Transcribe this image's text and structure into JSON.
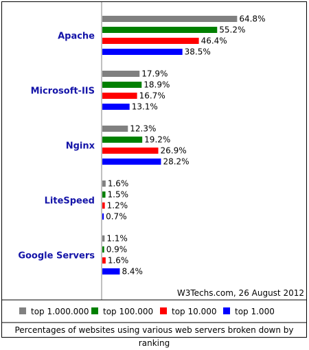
{
  "chart_data": {
    "type": "bar",
    "orientation": "horizontal",
    "categories": [
      "Apache",
      "Microsoft-IIS",
      "Nginx",
      "LiteSpeed",
      "Google Servers"
    ],
    "series": [
      {
        "name": "top 1.000.000",
        "color": "#808080",
        "values": [
          64.8,
          17.9,
          12.3,
          1.6,
          1.1
        ]
      },
      {
        "name": "top 100.000",
        "color": "#008000",
        "values": [
          55.2,
          18.9,
          19.2,
          1.5,
          0.9
        ]
      },
      {
        "name": "top 10.000",
        "color": "#ff0000",
        "values": [
          46.4,
          16.7,
          26.9,
          1.2,
          1.6
        ]
      },
      {
        "name": "top 1.000",
        "color": "#0000ff",
        "values": [
          38.5,
          13.1,
          28.2,
          0.7,
          8.4
        ]
      }
    ],
    "value_format": "percent_1dp",
    "xlim": [
      0,
      100
    ],
    "legend_position": "bottom",
    "grid": false
  },
  "credit": "W3Techs.com, 26 August 2012",
  "caption": "Percentages of websites using various web servers broken down by ranking"
}
